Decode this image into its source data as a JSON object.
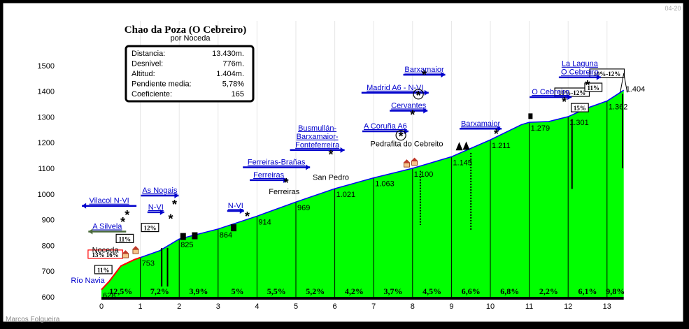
{
  "chart_data": {
    "type": "area",
    "title": "Chao da Poza (O Cebreiro)",
    "subtitle": "por Noceda",
    "date": "04-20",
    "author": "Marcos Folgueira",
    "xlim": [
      0,
      13.43
    ],
    "ylim": [
      600,
      1500
    ],
    "x_ticks": [
      "0",
      "1",
      "2",
      "3",
      "4",
      "5",
      "6",
      "7",
      "8",
      "9",
      "10",
      "11",
      "12",
      "13"
    ],
    "y_ticks": [
      "600",
      "700",
      "800",
      "900",
      "1000",
      "1100",
      "1200",
      "1300",
      "1400",
      "1500"
    ],
    "stats": [
      {
        "label": "Distancia:",
        "value": "13.430m."
      },
      {
        "label": "Desnivel:",
        "value": "776m."
      },
      {
        "label": "Altitud:",
        "value": "1.404m."
      },
      {
        "label": "Pendiente media:",
        "value": "5,78%"
      },
      {
        "label": "Coeficiente:",
        "value": "165"
      }
    ],
    "profile": [
      {
        "x": 0.0,
        "y": 628,
        "label": "628"
      },
      {
        "x": 0.2,
        "y": 660
      },
      {
        "x": 0.5,
        "y": 720
      },
      {
        "x": 0.85,
        "y": 745
      },
      {
        "x": 1.0,
        "y": 753,
        "label": "753"
      },
      {
        "x": 1.5,
        "y": 780
      },
      {
        "x": 2.0,
        "y": 825,
        "label": "825"
      },
      {
        "x": 3.0,
        "y": 864,
        "label": "864"
      },
      {
        "x": 4.0,
        "y": 914,
        "label": "914"
      },
      {
        "x": 5.0,
        "y": 969,
        "label": "969"
      },
      {
        "x": 6.0,
        "y": 1021,
        "label": "1.021"
      },
      {
        "x": 7.0,
        "y": 1063,
        "label": "1.063"
      },
      {
        "x": 8.0,
        "y": 1100,
        "label": "1.100"
      },
      {
        "x": 9.0,
        "y": 1145,
        "label": "1.145"
      },
      {
        "x": 10.0,
        "y": 1211,
        "label": "1.211"
      },
      {
        "x": 10.8,
        "y": 1270
      },
      {
        "x": 11.0,
        "y": 1279,
        "label": "1.279"
      },
      {
        "x": 11.5,
        "y": 1282
      },
      {
        "x": 12.0,
        "y": 1301,
        "label": "1.301"
      },
      {
        "x": 12.5,
        "y": 1335
      },
      {
        "x": 13.0,
        "y": 1362,
        "label": "1.362"
      },
      {
        "x": 13.43,
        "y": 1404,
        "label": "1.404"
      }
    ],
    "segment_gradients": [
      "12,5%",
      "7,2%",
      "3,9%",
      "5%",
      "5,5%",
      "5,2%",
      "4,2%",
      "3,7%",
      "4,5%",
      "6,6%",
      "6,8%",
      "2,2%",
      "6,1%",
      "9,8%"
    ],
    "ramps": [
      {
        "text": "11%",
        "x": 0.05,
        "elev": 698
      },
      {
        "text": "13%",
        "text2": "16%",
        "x": 0.1,
        "elev": 758
      },
      {
        "text": "12%",
        "x": 1.25,
        "elev": 862
      },
      {
        "text": "11%",
        "x": 0.6,
        "elev": 819
      },
      {
        "text": "15%",
        "x": 12.3,
        "elev": 1328
      },
      {
        "text": "10%-12%",
        "x": 12.1,
        "elev": 1388
      },
      {
        "text": "11%",
        "x": 12.65,
        "elev": 1407
      },
      {
        "text": "10%-12%",
        "x": 13.0,
        "elev": 1462
      }
    ],
    "places": [
      {
        "text": "Río Navia",
        "x": -0.35,
        "elev": 655
      },
      {
        "text": "Noceda",
        "x": 0.1,
        "elev": 772
      },
      {
        "text": "Ferreiras",
        "x": 4.7,
        "elev": 1000
      },
      {
        "text": "San Pedro",
        "x": 5.9,
        "elev": 1055
      },
      {
        "text": "Pedrafita do Cebreito",
        "x": 7.85,
        "elev": 1185
      }
    ],
    "junctions": [
      {
        "lines": [
          "Vilacol  N-VI"
        ],
        "x": 0.2,
        "elev": 965,
        "dir": "left",
        "dark": false
      },
      {
        "lines": [
          "A Silvela"
        ],
        "x": 0.15,
        "elev": 865,
        "dir": "left",
        "dark": true
      },
      {
        "lines": [
          "As Nogais"
        ],
        "x": 1.5,
        "elev": 1005,
        "dir": "right",
        "dark": false
      },
      {
        "lines": [
          "N-VI"
        ],
        "x": 1.4,
        "elev": 940,
        "dir": "right",
        "dark": false
      },
      {
        "lines": [
          "N-VI"
        ],
        "x": 3.45,
        "elev": 945,
        "dir": "right",
        "dark": false
      },
      {
        "lines": [
          "Ferreiras-Brañas"
        ],
        "x": 4.5,
        "elev": 1115,
        "dir": "right",
        "dark": false
      },
      {
        "lines": [
          "Ferreiras"
        ],
        "x": 4.3,
        "elev": 1065,
        "dir": "right",
        "dark": false
      },
      {
        "lines": [
          "Busmullán-",
          "Barxamaior-",
          "Fonteferreira"
        ],
        "x": 5.55,
        "elev": 1182,
        "dir": "right",
        "dark": false
      },
      {
        "lines": [
          "A Coruña A6"
        ],
        "x": 7.3,
        "elev": 1255,
        "dir": "right",
        "dark": false
      },
      {
        "lines": [
          "Cervantes"
        ],
        "x": 7.9,
        "elev": 1335,
        "dir": "right",
        "dark": false
      },
      {
        "lines": [
          "Madrid A6 - N-VI"
        ],
        "x": 7.55,
        "elev": 1405,
        "dir": "right",
        "dark": false
      },
      {
        "lines": [
          "Barxamaior"
        ],
        "x": 8.3,
        "elev": 1475,
        "dir": "right",
        "dark": false
      },
      {
        "lines": [
          "Barxamaior"
        ],
        "x": 9.75,
        "elev": 1265,
        "dir": "right",
        "dark": false
      },
      {
        "lines": [
          "O Cebreiro"
        ],
        "x": 11.55,
        "elev": 1388,
        "dir": "right",
        "dark": false
      },
      {
        "lines": [
          "La Laguna",
          "O Cebreiro"
        ],
        "x": 12.3,
        "elev": 1465,
        "dir": "right",
        "dark": false
      }
    ],
    "stars": [
      {
        "x": 0.66,
        "elev": 910,
        "circled": false
      },
      {
        "x": 0.55,
        "elev": 882,
        "circled": false
      },
      {
        "x": 1.88,
        "elev": 950,
        "circled": false
      },
      {
        "x": 1.78,
        "elev": 895,
        "circled": false
      },
      {
        "x": 3.75,
        "elev": 905,
        "circled": false
      },
      {
        "x": 4.75,
        "elev": 1035,
        "circled": false
      },
      {
        "x": 5.9,
        "elev": 1145,
        "circled": false
      },
      {
        "x": 7.7,
        "elev": 1215,
        "circled": true
      },
      {
        "x": 8.0,
        "elev": 1300,
        "circled": false
      },
      {
        "x": 8.15,
        "elev": 1375,
        "circled": true
      },
      {
        "x": 8.3,
        "elev": 1455,
        "circled": false
      },
      {
        "x": 10.15,
        "elev": 1225,
        "circled": false
      },
      {
        "x": 11.9,
        "elev": 1350,
        "circled": false
      },
      {
        "x": 12.5,
        "elev": 1415,
        "circled": false
      }
    ],
    "markers": [
      {
        "x": 9.5,
        "elev": 1160,
        "depth": 860
      },
      {
        "x": 8.2,
        "elev": 1090,
        "depth": 880
      },
      {
        "x": 12.1,
        "elev": 1292,
        "depth": 1020
      },
      {
        "x": 13.4,
        "elev": 1390,
        "depth": 1100
      },
      {
        "x": 1.55,
        "elev": 790,
        "depth": 640
      },
      {
        "x": 1.7,
        "elev": 790,
        "depth": 640
      }
    ]
  }
}
